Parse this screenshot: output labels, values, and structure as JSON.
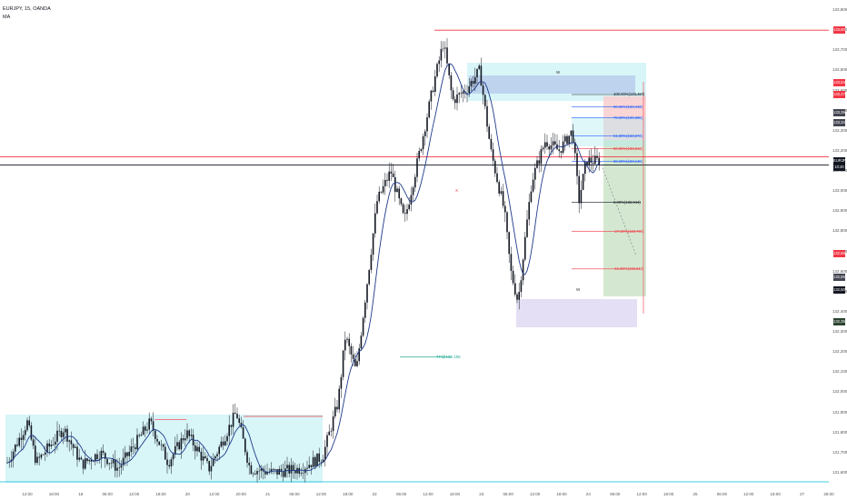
{
  "header": {
    "symbol_line": "EURJPY, 15, OANDA",
    "indicator": "MA"
  },
  "colors": {
    "candle": "#131722",
    "ma": "#1e3a8a",
    "price_line": "#131722",
    "red_line": "#f23645",
    "green_line": "#22ab94",
    "cyan_zone": "#b2ebf2",
    "blue_zone": "#bbd0ec",
    "lavender_zone": "#e1dcf3",
    "red_zone": "#f8d0d0",
    "green_zone": "#cfe5cc"
  },
  "chart_data": {
    "type": "candlestick",
    "y_ticks": [
      "133,900",
      "133,800",
      "133,700",
      "133,600",
      "133,500",
      "133,400",
      "133,300",
      "133,200",
      "133,100",
      "133,000",
      "132,900",
      "132,800",
      "132,700",
      "132,600",
      "132,500",
      "132,400",
      "132,300",
      "132,200",
      "132,100",
      "132,000",
      "131,900",
      "131,800",
      "131,700",
      "131,600"
    ],
    "x_ticks": [
      "12:00",
      "18:00",
      "18",
      "06:00",
      "12:00",
      "18:00",
      "20",
      "12:00",
      "20:00",
      "21",
      "06:00",
      "12:00",
      "18:00",
      "22",
      "06:00",
      "12:00",
      "18:00",
      "23",
      "06:00",
      "12:00",
      "18:00",
      "24",
      "06:00",
      "12:00",
      "18:00",
      "25",
      "06:00",
      "12:00",
      "18:00",
      "27",
      "28:00"
    ],
    "ylim": [
      131.55,
      133.95
    ],
    "tags": [
      {
        "label": "133,802",
        "value": 133.8,
        "color": "#f23645"
      },
      {
        "label": "133,540",
        "value": 133.54,
        "color": "#f23645"
      },
      {
        "label": "133,479",
        "value": 133.48,
        "color": "#f23645"
      },
      {
        "label": "133,394",
        "value": 133.39,
        "color": "#434651"
      },
      {
        "label": "133,340",
        "value": 133.34,
        "color": "#434651"
      },
      {
        "label": "EURJPY",
        "value": 133.15,
        "color": "#131722"
      },
      {
        "label": "10:20",
        "value": 133.12,
        "color": "#131722"
      },
      {
        "label": "132,686",
        "value": 132.69,
        "color": "#f23645"
      },
      {
        "label": "132,565",
        "value": 132.57,
        "color": "#434651"
      },
      {
        "label": "132,508",
        "value": 132.51,
        "color": "#131722"
      },
      {
        "label": "132,350",
        "value": 132.35,
        "color": "#2b4330"
      }
    ],
    "fib_levels": [
      {
        "label": "100.00%(133,480)",
        "value": 133.48,
        "color": "#131722"
      },
      {
        "label": "88.60%(133,419)",
        "value": 133.42,
        "color": "#2962ff"
      },
      {
        "label": "78.60%(133,365)",
        "value": 133.365,
        "color": "#2962ff"
      },
      {
        "label": "61.80%(133,274)",
        "value": 133.275,
        "color": "#2962ff"
      },
      {
        "label": "50.00%(133,212)",
        "value": 133.212,
        "color": "#f23645"
      },
      {
        "label": "38.20%(133,148)",
        "value": 133.148,
        "color": "#2962ff"
      },
      {
        "label": "0.00%(132,944)",
        "value": 132.944,
        "color": "#131722"
      },
      {
        "label": "-27.20%(132,799)",
        "value": 132.799,
        "color": "#f23645"
      },
      {
        "label": "-61.80%(132,613)",
        "value": 132.613,
        "color": "#f23645"
      }
    ],
    "annotations": [
      {
        "label": "W",
        "value": 133.59
      },
      {
        "label": "W",
        "value": 132.51
      },
      {
        "label": "TP@132.155",
        "value": 132.175
      },
      {
        "label": "X",
        "value": 133.0
      }
    ],
    "horizontal_lines": [
      {
        "value": 133.8,
        "color": "#f23645"
      },
      {
        "value": 133.17,
        "color": "#f23645"
      },
      {
        "value": 133.13,
        "color": "#131722"
      }
    ]
  }
}
